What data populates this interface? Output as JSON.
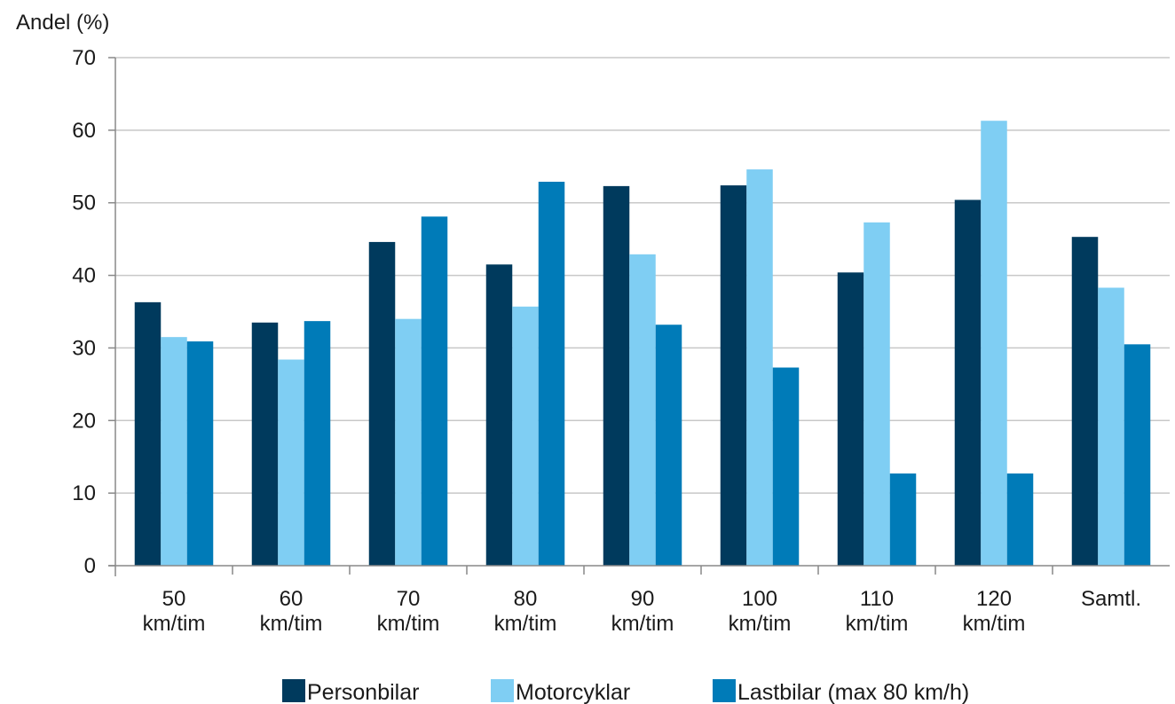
{
  "chart_data": {
    "type": "bar",
    "title": "",
    "xlabel": "",
    "ylabel": "Andel (%)",
    "ylim": [
      0,
      70
    ],
    "yticks": [
      0,
      10,
      20,
      30,
      40,
      50,
      60,
      70
    ],
    "grid": true,
    "legend_position": "bottom",
    "categories": [
      [
        "50",
        "km/tim"
      ],
      [
        "60",
        "km/tim"
      ],
      [
        "70",
        "km/tim"
      ],
      [
        "80",
        "km/tim"
      ],
      [
        "90",
        "km/tim"
      ],
      [
        "100",
        "km/tim"
      ],
      [
        "110",
        "km/tim"
      ],
      [
        "120",
        "km/tim"
      ],
      [
        "Samtl."
      ]
    ],
    "series": [
      {
        "name": "Personbilar",
        "color": "#003a5d",
        "values": [
          36.3,
          33.5,
          44.6,
          41.5,
          52.3,
          52.4,
          40.4,
          50.4,
          45.3
        ]
      },
      {
        "name": "Motorcyklar",
        "color": "#7fcef3",
        "values": [
          31.5,
          28.4,
          34.0,
          35.7,
          42.9,
          54.6,
          47.3,
          61.3,
          38.3
        ]
      },
      {
        "name": "Lastbilar (max 80 km/h)",
        "color": "#007bb8",
        "values": [
          30.9,
          33.7,
          48.1,
          52.9,
          33.2,
          27.3,
          12.7,
          12.7,
          30.5
        ]
      }
    ]
  }
}
